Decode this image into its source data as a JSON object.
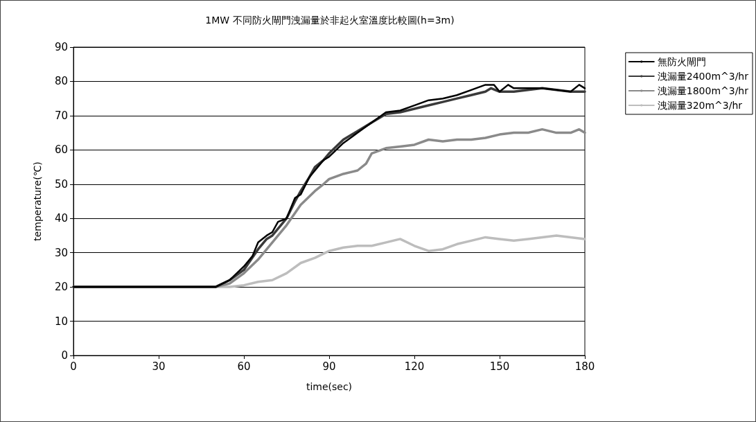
{
  "chart_data": {
    "type": "line",
    "title": "1MW 不同防火閘門洩漏量於非起火室溫度比較圖(h=3m)",
    "xlabel": "time(sec)",
    "ylabel": "temperature(℃)",
    "xlim": [
      0,
      180
    ],
    "xticks": [
      0,
      30,
      60,
      90,
      120,
      150,
      180
    ],
    "ylim": [
      0,
      90
    ],
    "yticks": [
      0,
      10,
      20,
      30,
      40,
      50,
      60,
      70,
      80,
      90
    ],
    "grid": "y",
    "legend": "right",
    "marker": "none",
    "line_style": "solid",
    "series": [
      {
        "name": "無防火閘門",
        "color": "#000000",
        "x": [
          0,
          50,
          55,
          60,
          63,
          65,
          68,
          70,
          72,
          75,
          78,
          80,
          83,
          85,
          88,
          90,
          95,
          100,
          105,
          110,
          115,
          120,
          125,
          130,
          135,
          140,
          145,
          148,
          150,
          153,
          155,
          160,
          165,
          170,
          175,
          178,
          180
        ],
        "values": [
          20,
          20,
          22,
          26,
          29,
          33,
          35,
          36,
          39,
          40,
          46,
          47,
          52,
          54,
          57,
          58,
          62,
          65,
          68,
          71,
          71.5,
          73,
          74.5,
          75,
          76,
          77.5,
          79,
          79,
          77,
          79,
          78,
          78,
          78,
          77.5,
          77,
          79,
          78
        ]
      },
      {
        "name": "洩漏量2400m^3/hr",
        "color": "#3a3a3a",
        "x": [
          0,
          50,
          55,
          60,
          65,
          68,
          70,
          73,
          75,
          78,
          80,
          83,
          85,
          88,
          90,
          95,
          100,
          105,
          110,
          115,
          120,
          125,
          130,
          135,
          140,
          145,
          147,
          150,
          155,
          160,
          165,
          170,
          175,
          180
        ],
        "values": [
          20,
          20,
          22,
          25,
          31,
          34,
          35,
          38,
          40,
          45,
          48,
          52,
          55,
          57,
          59,
          63,
          65.5,
          68,
          70.5,
          71,
          72,
          73,
          74,
          75,
          76,
          77,
          78,
          77,
          77,
          77.5,
          78,
          77.5,
          77,
          77
        ]
      },
      {
        "name": "洩漏量1800m^3/hr",
        "color": "#8a8a8a",
        "x": [
          0,
          50,
          55,
          60,
          65,
          70,
          75,
          80,
          85,
          88,
          90,
          95,
          100,
          103,
          105,
          110,
          115,
          120,
          125,
          130,
          135,
          140,
          145,
          150,
          155,
          160,
          165,
          170,
          175,
          178,
          180
        ],
        "values": [
          20,
          20,
          21,
          24,
          28,
          33,
          38,
          44,
          48,
          50,
          51.5,
          53,
          54,
          56,
          59,
          60.5,
          61,
          61.5,
          63,
          62.5,
          63,
          63,
          63.5,
          64.5,
          65,
          65,
          66,
          65,
          65,
          66,
          65
        ]
      },
      {
        "name": "洩漏量320m^3/hr",
        "color": "#bdbdbd",
        "x": [
          0,
          55,
          60,
          65,
          70,
          75,
          80,
          85,
          90,
          95,
          100,
          105,
          110,
          115,
          120,
          125,
          130,
          135,
          140,
          145,
          150,
          155,
          160,
          165,
          170,
          175,
          180
        ],
        "values": [
          20,
          20,
          20.5,
          21.5,
          22,
          24,
          27,
          28.5,
          30.5,
          31.5,
          32,
          32,
          33,
          34,
          32,
          30.5,
          31,
          32.5,
          33.5,
          34.5,
          34,
          33.5,
          34,
          34.5,
          35,
          34.5,
          34
        ]
      }
    ]
  }
}
